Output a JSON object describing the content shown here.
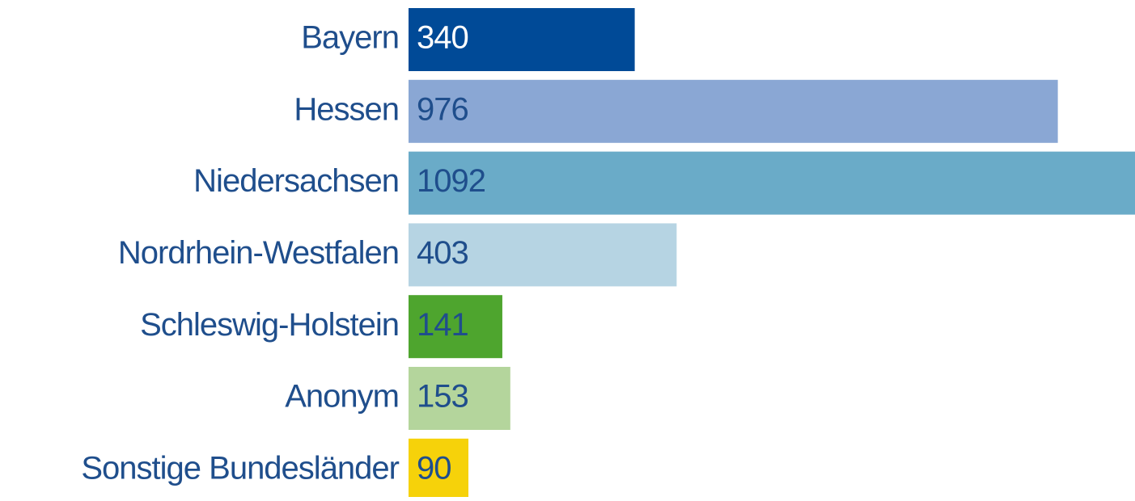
{
  "chart_data": {
    "type": "bar",
    "orientation": "horizontal",
    "categories": [
      "Bayern",
      "Hessen",
      "Niedersachsen",
      "Nordrhein-Westfalen",
      "Schleswig-Holstein",
      "Anonym",
      "Sonstige Bundesländer"
    ],
    "values": [
      340,
      976,
      1092,
      403,
      141,
      153,
      90
    ],
    "colors": [
      "#004a97",
      "#8aa7d4",
      "#6aabc8",
      "#b6d4e3",
      "#4ea52e",
      "#b4d59c",
      "#f6d20a"
    ],
    "label_colors": [
      "#ffffff",
      "#1f4e8c",
      "#1f4e8c",
      "#1f4e8c",
      "#1f4e8c",
      "#1f4e8c",
      "#1f4e8c"
    ],
    "category_label_color": "#1f4e8c"
  }
}
